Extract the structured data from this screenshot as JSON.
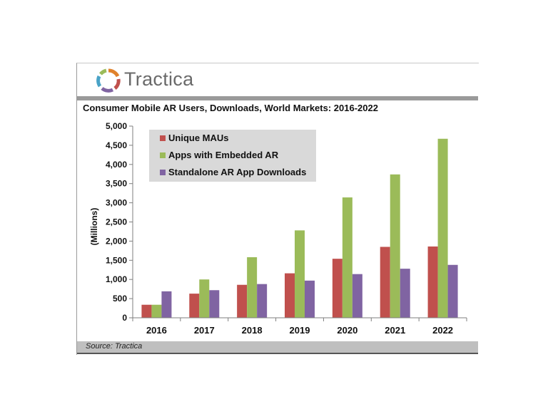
{
  "brand": {
    "name": "Tractica"
  },
  "source": "Source: Tractica",
  "colors": {
    "unique": "#c0504d",
    "embedded": "#9bbb59",
    "standalone": "#8064a2",
    "legend_bg": "#d9d9d9"
  },
  "chart_data": {
    "type": "bar",
    "title": "Consumer Mobile AR Users, Downloads, World Markets: 2016-2022",
    "ylabel": "(Millions)",
    "xlabel": "",
    "categories": [
      "2016",
      "2017",
      "2018",
      "2019",
      "2020",
      "2021",
      "2022"
    ],
    "ylim": [
      0,
      5000
    ],
    "yticks": [
      0,
      500,
      1000,
      1500,
      2000,
      2500,
      3000,
      3500,
      4000,
      4500,
      5000
    ],
    "ytick_labels": [
      "0",
      "500",
      "1,000",
      "1,500",
      "2,000",
      "2,500",
      "3,000",
      "3,500",
      "4,000",
      "4,500",
      "5,000"
    ],
    "legend_position": "top-left",
    "grid": false,
    "series": [
      {
        "name": "Unique MAUs",
        "color": "#c0504d",
        "values": [
          340,
          630,
          860,
          1160,
          1540,
          1850,
          1860
        ]
      },
      {
        "name": "Apps with Embedded AR",
        "color": "#9bbb59",
        "values": [
          340,
          1000,
          1580,
          2280,
          3140,
          3740,
          4670
        ]
      },
      {
        "name": "Standalone AR App Downloads",
        "color": "#8064a2",
        "values": [
          690,
          720,
          880,
          970,
          1140,
          1280,
          1380
        ]
      }
    ]
  }
}
